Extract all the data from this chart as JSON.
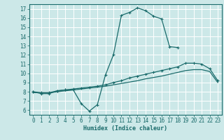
{
  "xlabel": "Humidex (Indice chaleur)",
  "bg_color": "#cce8e8",
  "grid_color": "#ffffff",
  "line_color": "#1a6b6b",
  "xlim": [
    -0.5,
    23.5
  ],
  "ylim": [
    5.5,
    17.5
  ],
  "xticks": [
    0,
    1,
    2,
    3,
    4,
    5,
    6,
    7,
    8,
    9,
    10,
    11,
    12,
    13,
    14,
    15,
    16,
    17,
    18,
    19,
    20,
    21,
    22,
    23
  ],
  "yticks": [
    6,
    7,
    8,
    9,
    10,
    11,
    12,
    13,
    14,
    15,
    16,
    17
  ],
  "series": [
    {
      "x": [
        0,
        1,
        2,
        3,
        4,
        5,
        6,
        7,
        8,
        9,
        10,
        11,
        12,
        13,
        14,
        15,
        16,
        17,
        18
      ],
      "y": [
        8.0,
        7.8,
        7.8,
        8.1,
        8.2,
        8.2,
        6.7,
        5.9,
        6.6,
        9.8,
        12.0,
        16.3,
        16.6,
        17.1,
        16.8,
        16.2,
        15.9,
        12.9,
        12.8
      ],
      "marker": true
    },
    {
      "x": [
        0,
        1,
        2,
        3,
        4,
        5,
        6,
        7,
        8,
        9,
        10,
        11,
        12,
        13,
        14,
        15,
        16,
        17,
        18,
        19,
        20,
        21,
        22,
        23
      ],
      "y": [
        8.0,
        7.9,
        7.9,
        8.1,
        8.2,
        8.3,
        8.4,
        8.5,
        8.6,
        8.75,
        9.0,
        9.2,
        9.5,
        9.7,
        9.9,
        10.1,
        10.3,
        10.5,
        10.7,
        11.1,
        11.1,
        11.0,
        10.5,
        9.2
      ],
      "marker": true
    },
    {
      "x": [
        0,
        1,
        2,
        3,
        4,
        5,
        6,
        7,
        8,
        9,
        10,
        11,
        12,
        13,
        14,
        15,
        16,
        17,
        18,
        19,
        20,
        21,
        22,
        23
      ],
      "y": [
        7.9,
        7.9,
        7.9,
        8.0,
        8.1,
        8.2,
        8.3,
        8.4,
        8.5,
        8.6,
        8.75,
        8.9,
        9.05,
        9.2,
        9.4,
        9.55,
        9.7,
        9.9,
        10.1,
        10.3,
        10.4,
        10.4,
        10.2,
        9.0
      ],
      "marker": false
    }
  ]
}
